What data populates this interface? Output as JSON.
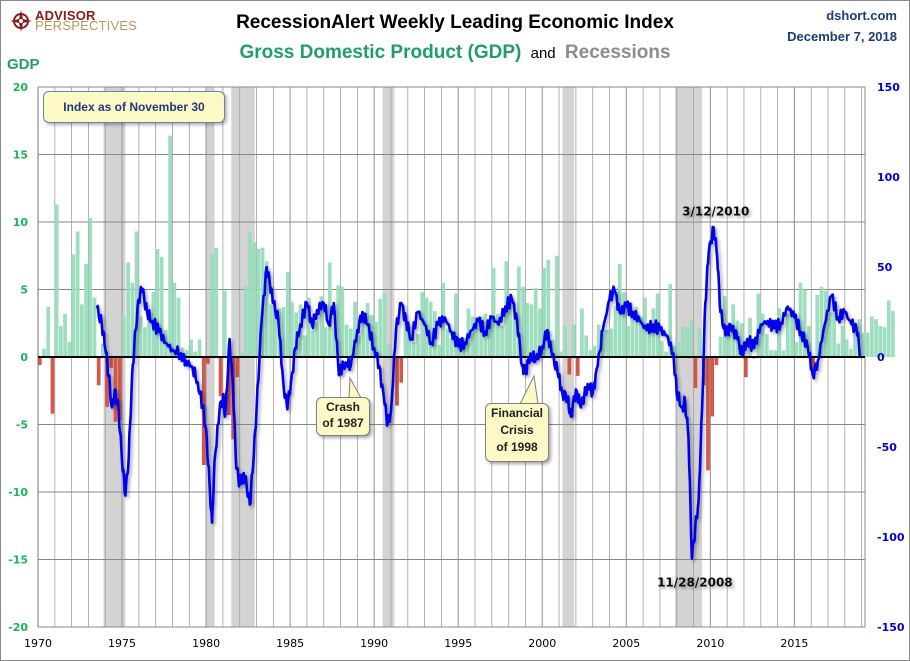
{
  "header": {
    "logo_line1": "ADVISOR",
    "logo_line2": "PERSPECTIVES",
    "title": "RecessionAlert Weekly Leading Economic Index",
    "subtitle_gdp": "Gross Domestic Product (GDP)",
    "subtitle_and": "and",
    "subtitle_recessions": "Recessions",
    "site": "dshort.com",
    "date": "December 7, 2018"
  },
  "index_note": "Index as of November 30",
  "colors": {
    "gdp_positive": "#97dcb9",
    "gdp_negative": "#d05040",
    "wli_line": "#0000ee",
    "recession": "#d3d3d3",
    "left_axis_text": "#1cb35a",
    "right_axis_text": "#0000cc",
    "gdp_title": "#1e9e6c",
    "grid": "#a0a0a0"
  },
  "chart_data": {
    "type": "bar+line",
    "title": "RecessionAlert Weekly Leading Economic Index",
    "subtitle": "Gross Domestic Product (GDP) and Recessions",
    "xlabel": "",
    "ylabel_left": "GDP",
    "xlim": [
      1970,
      2019.2
    ],
    "x_ticks": [
      1970,
      1975,
      1980,
      1985,
      1990,
      1995,
      2000,
      2005,
      2010,
      2015
    ],
    "ylim_left": [
      -20,
      20
    ],
    "y_ticks_left": [
      20,
      15,
      10,
      5,
      0,
      -5,
      -10,
      -15,
      -20
    ],
    "ylim_right": [
      -150,
      150
    ],
    "y_ticks_right": [
      150,
      100,
      50,
      0,
      -50,
      -100,
      -150
    ],
    "grid": true,
    "recessions": [
      [
        1973.9,
        1975.2
      ],
      [
        1980.0,
        1980.5
      ],
      [
        1981.5,
        1982.9
      ],
      [
        1990.5,
        1991.2
      ],
      [
        2001.2,
        2001.9
      ],
      [
        2007.9,
        2009.5
      ]
    ],
    "gdp_series": {
      "name": "GDP (annualized % change, quarterly)",
      "start": 1970.0,
      "step": 0.25,
      "values": [
        -0.6,
        0.6,
        3.7,
        -4.2,
        11.3,
        2.3,
        3.2,
        1.1,
        7.6,
        9.3,
        3.9,
        6.9,
        10.3,
        4.4,
        -2.1,
        1.0,
        -3.7,
        -0.8,
        -4.8,
        -4.7,
        3.0,
        7.0,
        5.5,
        9.3,
        3.0,
        2.2,
        2.9,
        4.8,
        8.0,
        7.4,
        2.0,
        16.4,
        5.5,
        4.4,
        0.7,
        0.5,
        1.3,
        0.4,
        1.3,
        -8.0,
        -0.5,
        7.6,
        8.1,
        -2.9,
        4.9,
        -4.3,
        -6.1,
        -1.5,
        0.3,
        5.3,
        9.3,
        8.5,
        8.0,
        8.1,
        7.1,
        3.9,
        3.4,
        3.6,
        3.7,
        6.3,
        4.1,
        3.3,
        3.9,
        1.6,
        4.4,
        2.0,
        2.6,
        4.5,
        2.2,
        7.0,
        2.1,
        5.3,
        5.2,
        2.4,
        2.1,
        4.1,
        1.6,
        2.8,
        4.0,
        3.1,
        2.6,
        4.3,
        4.7,
        1.0,
        0.0,
        -3.6,
        -1.9,
        3.1,
        2.3,
        1.1,
        1.7,
        4.8,
        4.4,
        4.1,
        3.4,
        0.9,
        5.5,
        2.1,
        1.4,
        4.7,
        1.2,
        1.4,
        3.6,
        3.0,
        2.8,
        3.0,
        3.2,
        2.7,
        6.6,
        3.2,
        2.3,
        7.1,
        4.6,
        2.8,
        6.7,
        5.2,
        4.0,
        3.9,
        5.1,
        3.6,
        6.6,
        7.2,
        1.3,
        7.5,
        0.4,
        2.3,
        -1.3,
        2.4,
        -1.4,
        3.6,
        1.6,
        0.5,
        0.8,
        2.4,
        2.0,
        2.0,
        2.1,
        3.8,
        6.9,
        4.8,
        2.3,
        3.0,
        3.7,
        3.0,
        4.4,
        2.2,
        3.6,
        4.7,
        1.2,
        0.4,
        5.4,
        0.8,
        1.1,
        2.3,
        2.2,
        2.7,
        -2.3,
        2.1,
        -2.1,
        -8.4,
        -4.4,
        -0.6,
        1.5,
        4.5,
        1.7,
        3.9,
        2.7,
        2.5,
        -1.5,
        2.9,
        -0.1,
        4.7,
        3.2,
        1.7,
        0.5,
        0.5,
        3.6,
        0.5,
        3.2,
        3.2,
        1.1,
        5.5,
        5.0,
        2.3,
        -0.9,
        4.6,
        5.2,
        4.9,
        3.3,
        3.3,
        1.0,
        2.3,
        1.3,
        0.6,
        2.2,
        2.8,
        1.8,
        1.8,
        3.0,
        2.8,
        2.3,
        2.2,
        4.2,
        3.4
      ]
    },
    "wli_series": {
      "name": "RecessionAlert WLI (right axis)",
      "points": [
        [
          1973.5,
          27
        ],
        [
          1973.8,
          18
        ],
        [
          1974.0,
          5
        ],
        [
          1974.2,
          -10
        ],
        [
          1974.4,
          -28
        ],
        [
          1974.6,
          -18
        ],
        [
          1974.8,
          -30
        ],
        [
          1975.0,
          -58
        ],
        [
          1975.2,
          -77
        ],
        [
          1975.4,
          -55
        ],
        [
          1975.6,
          -10
        ],
        [
          1975.8,
          15
        ],
        [
          1976.0,
          32
        ],
        [
          1976.2,
          38
        ],
        [
          1976.5,
          24
        ],
        [
          1976.8,
          20
        ],
        [
          1977.2,
          14
        ],
        [
          1977.6,
          8
        ],
        [
          1978.0,
          4
        ],
        [
          1978.5,
          2
        ],
        [
          1978.8,
          -2
        ],
        [
          1979.2,
          -6
        ],
        [
          1979.5,
          -14
        ],
        [
          1979.8,
          -28
        ],
        [
          1980.0,
          -40
        ],
        [
          1980.2,
          -70
        ],
        [
          1980.35,
          -92
        ],
        [
          1980.5,
          -58
        ],
        [
          1980.8,
          -30
        ],
        [
          1981.0,
          -22
        ],
        [
          1981.15,
          -32
        ],
        [
          1981.4,
          10
        ],
        [
          1981.6,
          -18
        ],
        [
          1981.8,
          -62
        ],
        [
          1982.0,
          -70
        ],
        [
          1982.2,
          -65
        ],
        [
          1982.4,
          -70
        ],
        [
          1982.6,
          -82
        ],
        [
          1982.8,
          -60
        ],
        [
          1983.0,
          -30
        ],
        [
          1983.3,
          20
        ],
        [
          1983.6,
          50
        ],
        [
          1983.8,
          40
        ],
        [
          1984.0,
          30
        ],
        [
          1984.3,
          20
        ],
        [
          1984.6,
          -15
        ],
        [
          1984.8,
          -27
        ],
        [
          1985.0,
          -20
        ],
        [
          1985.3,
          5
        ],
        [
          1985.6,
          18
        ],
        [
          1986.0,
          30
        ],
        [
          1986.3,
          18
        ],
        [
          1986.6,
          26
        ],
        [
          1987.0,
          30
        ],
        [
          1987.3,
          18
        ],
        [
          1987.6,
          30
        ],
        [
          1987.9,
          -10
        ],
        [
          1988.0,
          -7
        ],
        [
          1988.3,
          -3
        ],
        [
          1988.6,
          -5
        ],
        [
          1989.0,
          15
        ],
        [
          1989.3,
          25
        ],
        [
          1989.6,
          18
        ],
        [
          1990.0,
          5
        ],
        [
          1990.3,
          -5
        ],
        [
          1990.6,
          -25
        ],
        [
          1990.8,
          -37
        ],
        [
          1991.0,
          -30
        ],
        [
          1991.3,
          15
        ],
        [
          1991.6,
          30
        ],
        [
          1991.9,
          20
        ],
        [
          1992.2,
          10
        ],
        [
          1992.6,
          25
        ],
        [
          1993.0,
          18
        ],
        [
          1993.4,
          8
        ],
        [
          1993.8,
          18
        ],
        [
          1994.2,
          22
        ],
        [
          1994.6,
          14
        ],
        [
          1995.0,
          6
        ],
        [
          1995.4,
          8
        ],
        [
          1995.8,
          15
        ],
        [
          1996.2,
          20
        ],
        [
          1996.6,
          14
        ],
        [
          1997.0,
          22
        ],
        [
          1997.4,
          18
        ],
        [
          1997.8,
          28
        ],
        [
          1998.2,
          32
        ],
        [
          1998.5,
          20
        ],
        [
          1998.8,
          -5
        ],
        [
          1999.0,
          -8
        ],
        [
          1999.3,
          2
        ],
        [
          1999.6,
          -2
        ],
        [
          2000.0,
          6
        ],
        [
          2000.3,
          15
        ],
        [
          2000.6,
          0
        ],
        [
          2000.9,
          -8
        ],
        [
          2001.2,
          -20
        ],
        [
          2001.5,
          -22
        ],
        [
          2001.7,
          -33
        ],
        [
          2002.0,
          -18
        ],
        [
          2002.3,
          -28
        ],
        [
          2002.7,
          -15
        ],
        [
          2003.0,
          -20
        ],
        [
          2003.3,
          -5
        ],
        [
          2003.6,
          15
        ],
        [
          2004.0,
          32
        ],
        [
          2004.3,
          37
        ],
        [
          2004.6,
          25
        ],
        [
          2005.0,
          28
        ],
        [
          2005.4,
          25
        ],
        [
          2005.8,
          20
        ],
        [
          2006.2,
          15
        ],
        [
          2006.6,
          18
        ],
        [
          2007.0,
          15
        ],
        [
          2007.4,
          12
        ],
        [
          2007.8,
          2
        ],
        [
          2008.0,
          -20
        ],
        [
          2008.3,
          -28
        ],
        [
          2008.5,
          -25
        ],
        [
          2008.7,
          -45
        ],
        [
          2008.9,
          -112
        ],
        [
          2009.1,
          -95
        ],
        [
          2009.3,
          -80
        ],
        [
          2009.5,
          -30
        ],
        [
          2009.7,
          30
        ],
        [
          2009.9,
          58
        ],
        [
          2010.2,
          72
        ],
        [
          2010.4,
          56
        ],
        [
          2010.6,
          25
        ],
        [
          2010.9,
          12
        ],
        [
          2011.2,
          18
        ],
        [
          2011.6,
          10
        ],
        [
          2011.9,
          1
        ],
        [
          2012.2,
          10
        ],
        [
          2012.6,
          5
        ],
        [
          2013.0,
          18
        ],
        [
          2013.4,
          20
        ],
        [
          2013.8,
          16
        ],
        [
          2014.2,
          19
        ],
        [
          2014.6,
          28
        ],
        [
          2015.0,
          22
        ],
        [
          2015.4,
          14
        ],
        [
          2015.8,
          5
        ],
        [
          2016.1,
          -10
        ],
        [
          2016.4,
          -2
        ],
        [
          2016.8,
          18
        ],
        [
          2017.2,
          34
        ],
        [
          2017.6,
          22
        ],
        [
          2018.0,
          25
        ],
        [
          2018.4,
          18
        ],
        [
          2018.7,
          15
        ],
        [
          2018.92,
          2
        ]
      ]
    },
    "annotations": [
      {
        "text": "3/12/2010",
        "x": 2010.2,
        "y_right": 72
      },
      {
        "text": "11/28/2008",
        "x": 2008.9,
        "y_right": -112
      },
      {
        "text": "Crash of 1987",
        "lines": [
          "Crash",
          "of 1987"
        ],
        "x": 1987.9
      },
      {
        "text": "Financial Crisis of 1998",
        "lines": [
          "Financial",
          "Crisis",
          "of 1998"
        ],
        "x": 1998.8
      }
    ],
    "gdp_axis_label": "GDP"
  }
}
